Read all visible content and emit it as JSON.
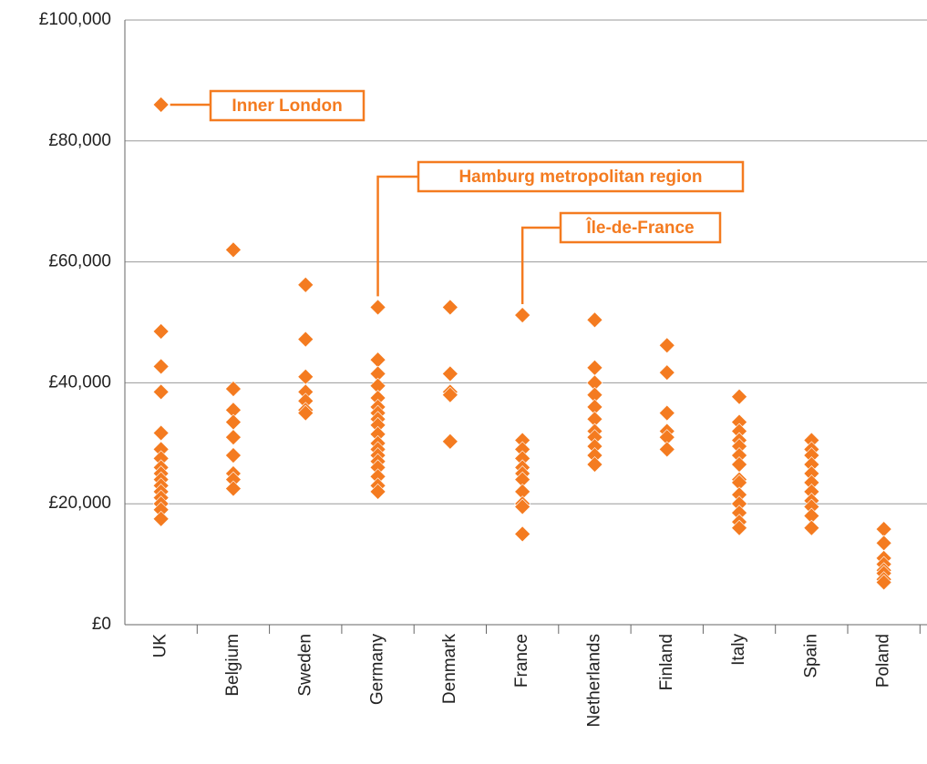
{
  "chart_data": {
    "type": "strip",
    "color": "#f47b20",
    "grid": true,
    "categories": [
      "UK",
      "Belgium",
      "Sweden",
      "Germany",
      "Denmark",
      "France",
      "Netherlands",
      "Finland",
      "Italy",
      "Spain",
      "Poland"
    ],
    "values": [
      [
        86000,
        48500,
        42700,
        38500,
        31700,
        29000,
        27500,
        26000,
        25000,
        24000,
        23000,
        22000,
        21000,
        20000,
        19000,
        17500
      ],
      [
        62000,
        39000,
        35500,
        33500,
        31000,
        28000,
        25000,
        24000,
        22500
      ],
      [
        56200,
        47200,
        41000,
        38500,
        37000,
        35500,
        35000
      ],
      [
        52500,
        43800,
        41500,
        39500,
        37500,
        36000,
        35000,
        34000,
        33000,
        31500,
        30000,
        29000,
        28000,
        27000,
        26000,
        24500,
        23000,
        22000
      ],
      [
        52500,
        41500,
        38500,
        38000,
        30300
      ],
      [
        51200,
        30500,
        29000,
        27500,
        26000,
        25000,
        24000,
        22000,
        20000,
        19500,
        15000
      ],
      [
        50400,
        42500,
        40000,
        38000,
        36000,
        34000,
        32000,
        31000,
        29500,
        28000,
        26500
      ],
      [
        46200,
        41700,
        35000,
        32000,
        31000,
        29000
      ],
      [
        37700,
        33500,
        32000,
        30500,
        29500,
        28000,
        26500,
        24000,
        23500,
        21500,
        20000,
        18500,
        17000,
        16000
      ],
      [
        30500,
        29000,
        28000,
        26500,
        25000,
        23500,
        22000,
        20500,
        19500,
        18000,
        16000
      ],
      [
        15800,
        13500,
        11000,
        10000,
        9000,
        8500,
        7500,
        7000
      ]
    ],
    "ylim": [
      0,
      100000
    ],
    "yticks": [
      {
        "value": 0,
        "label": "£0"
      },
      {
        "value": 20000,
        "label": "£20,000"
      },
      {
        "value": 40000,
        "label": "£40,000"
      },
      {
        "value": 60000,
        "label": "£60,000"
      },
      {
        "value": 80000,
        "label": "£80,000"
      },
      {
        "value": 100000,
        "label": "£100,000"
      }
    ],
    "annotations": [
      "Inner London",
      "Hamburg metropolitan region",
      "Île-de-France"
    ]
  }
}
